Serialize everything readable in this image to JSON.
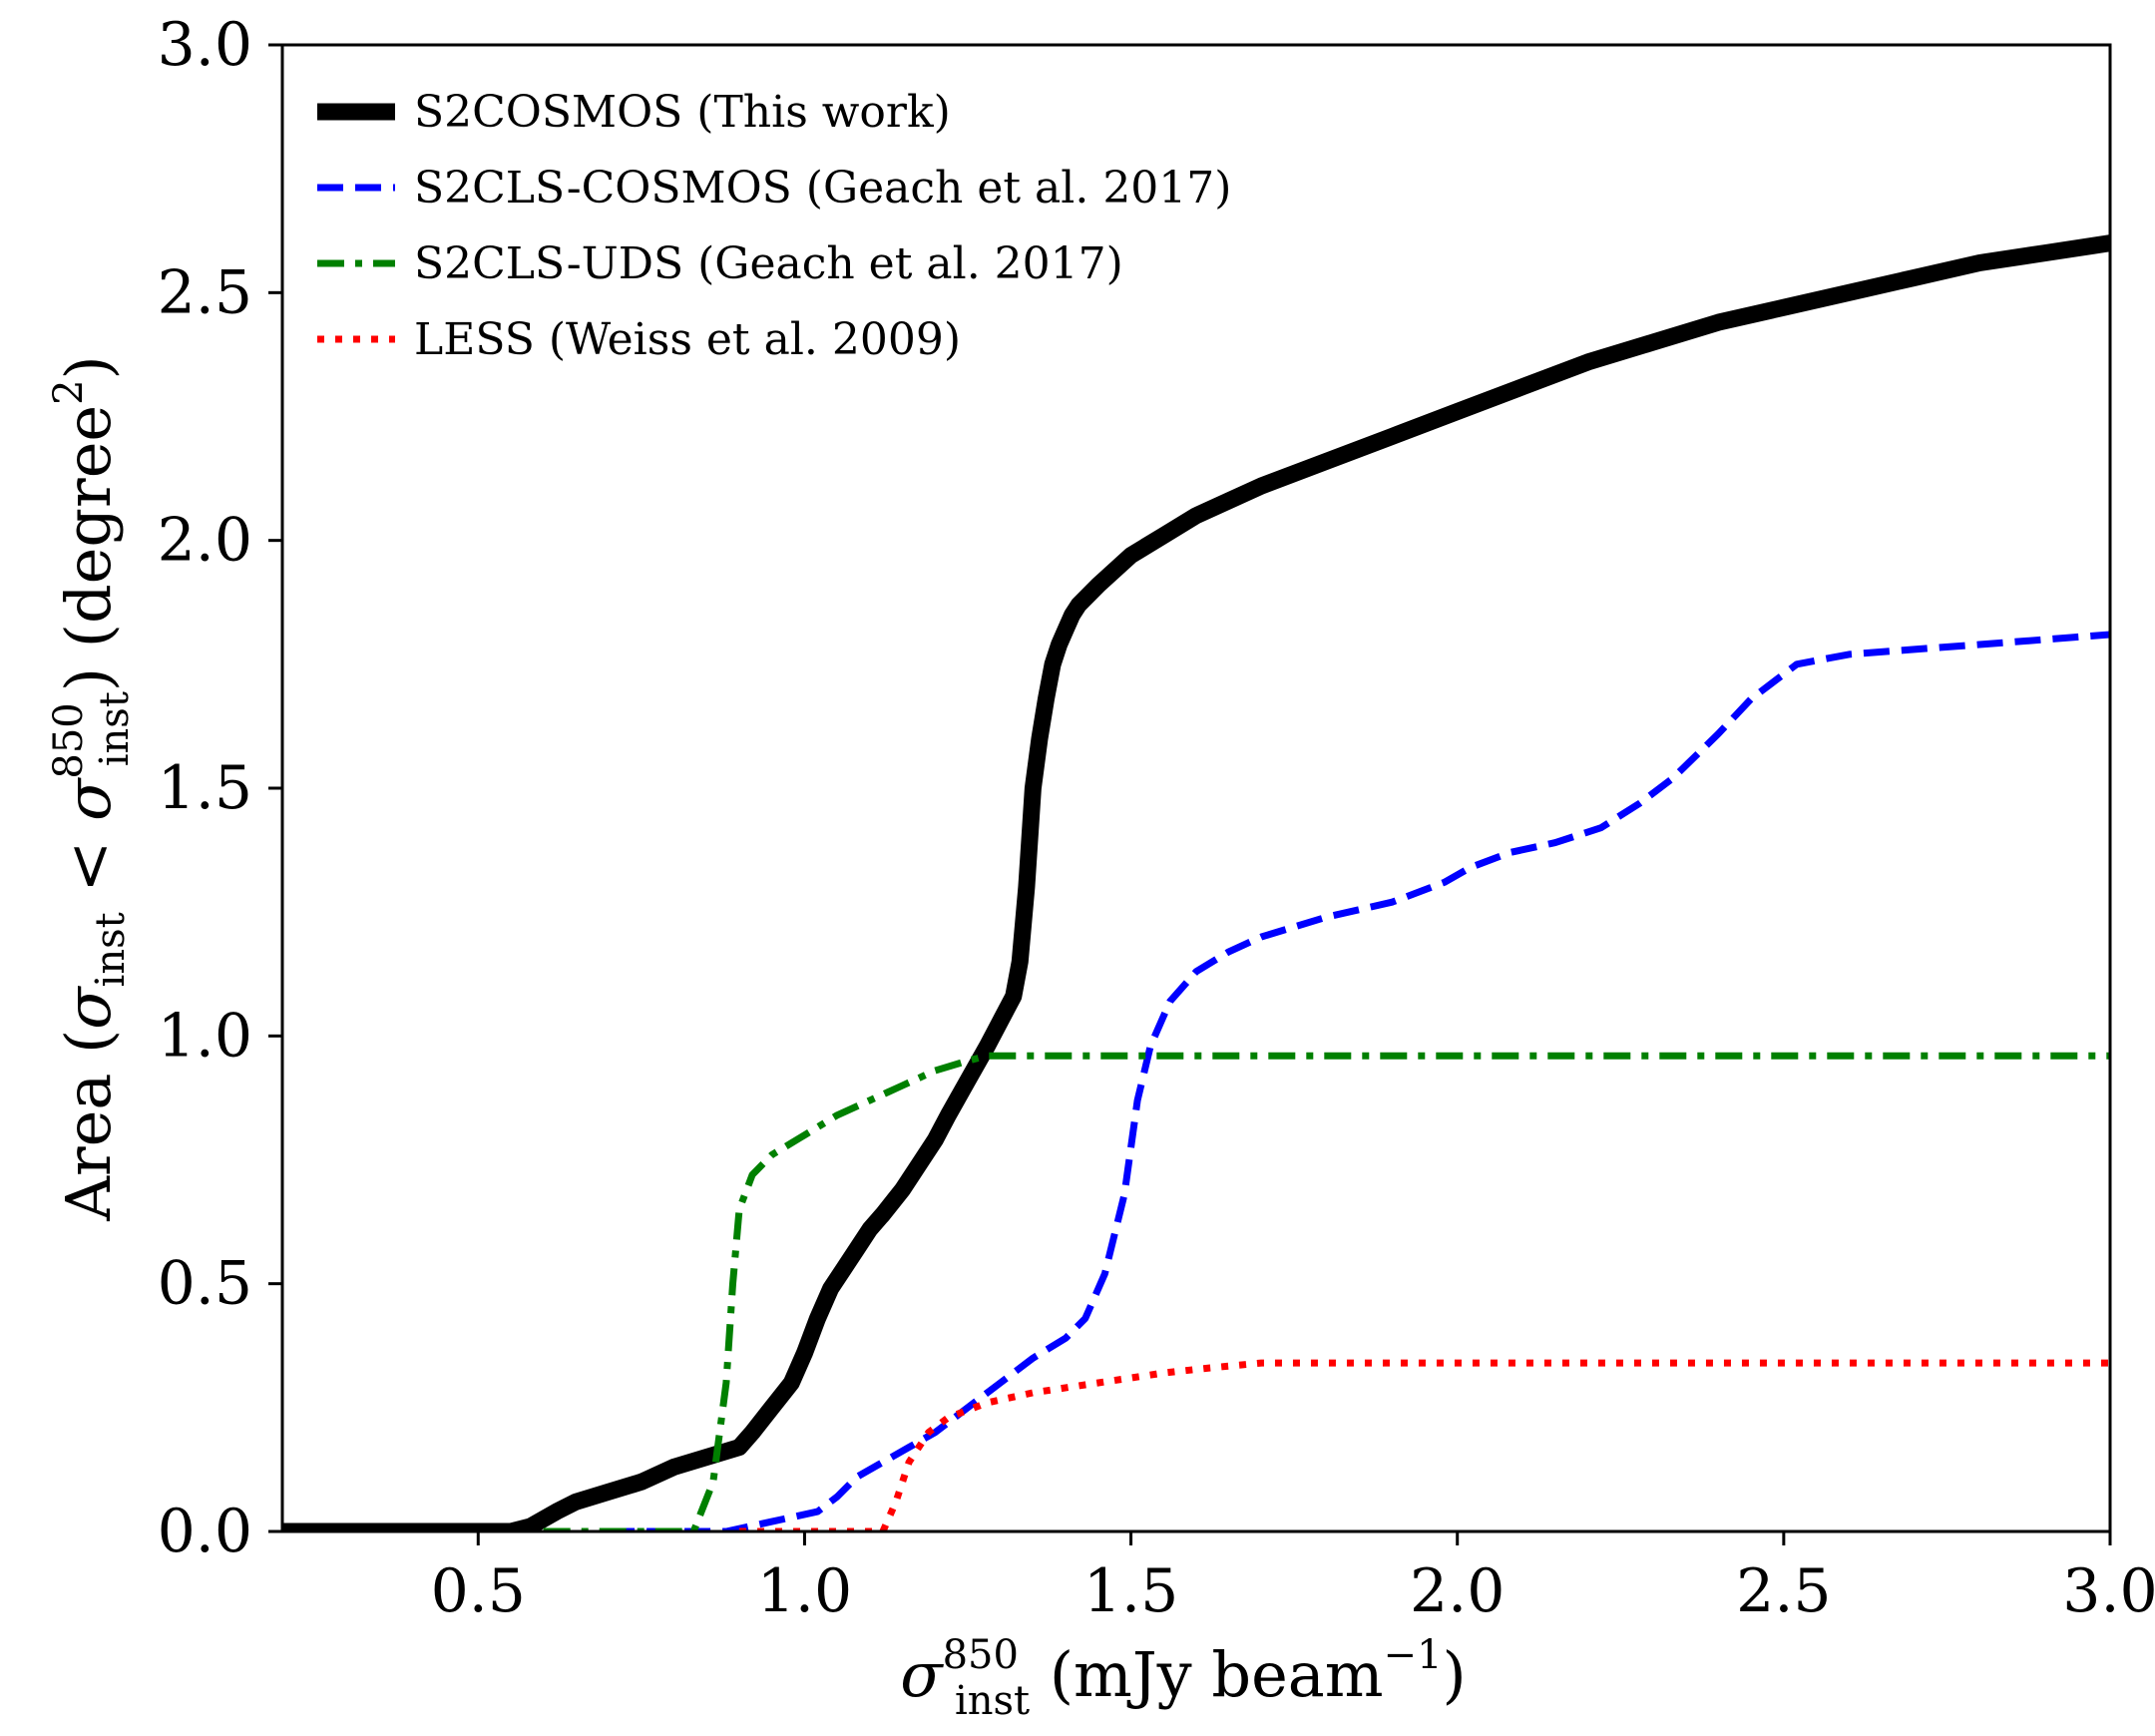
{
  "chart_data": {
    "type": "line",
    "title": "",
    "xlabel": {
      "main": "σ",
      "sup": "850",
      "sub": "inst",
      "rest": " (mJy beam",
      "unit_sup": "−1",
      "close": ")"
    },
    "ylabel": {
      "pre": "Area (",
      "sigma1": "σ",
      "sigma1_sub": "inst",
      "lt": " < ",
      "sigma2": "σ",
      "sigma2_sup": "850",
      "sigma2_sub": "inst",
      "mid": ") (degree",
      "deg_sup": "2",
      "close": ")"
    },
    "xlim": [
      0.2,
      3.0
    ],
    "ylim": [
      0.0,
      3.0
    ],
    "xticks": [
      0.5,
      1.0,
      1.5,
      2.0,
      2.5,
      3.0
    ],
    "xtick_labels": [
      "0.5",
      "1.0",
      "1.5",
      "2.0",
      "2.5",
      "3.0"
    ],
    "yticks": [
      0.0,
      0.5,
      1.0,
      1.5,
      2.0,
      2.5,
      3.0
    ],
    "ytick_labels": [
      "0.0",
      "0.5",
      "1.0",
      "1.5",
      "2.0",
      "2.5",
      "3.0"
    ],
    "grid": false,
    "legend_position": "top-left",
    "series": [
      {
        "name": "S2COSMOS (This work)",
        "color": "#000000",
        "style": "solid-thick",
        "x": [
          0.2,
          0.5,
          0.55,
          0.58,
          0.62,
          0.65,
          0.7,
          0.75,
          0.8,
          0.85,
          0.9,
          0.92,
          0.95,
          0.98,
          1.0,
          1.02,
          1.04,
          1.06,
          1.08,
          1.1,
          1.12,
          1.15,
          1.18,
          1.2,
          1.22,
          1.25,
          1.28,
          1.3,
          1.32,
          1.33,
          1.34,
          1.35,
          1.36,
          1.37,
          1.38,
          1.39,
          1.4,
          1.41,
          1.42,
          1.45,
          1.5,
          1.55,
          1.6,
          1.65,
          1.7,
          1.8,
          1.9,
          2.0,
          2.1,
          2.2,
          2.3,
          2.4,
          2.5,
          2.6,
          2.7,
          2.8,
          2.9,
          3.0
        ],
        "y": [
          0.0,
          0.0,
          0.0,
          0.01,
          0.04,
          0.06,
          0.08,
          0.1,
          0.13,
          0.15,
          0.17,
          0.2,
          0.25,
          0.3,
          0.36,
          0.43,
          0.49,
          0.53,
          0.57,
          0.61,
          0.64,
          0.69,
          0.75,
          0.79,
          0.84,
          0.91,
          0.98,
          1.03,
          1.08,
          1.15,
          1.3,
          1.5,
          1.6,
          1.68,
          1.75,
          1.79,
          1.82,
          1.85,
          1.87,
          1.91,
          1.97,
          2.01,
          2.05,
          2.08,
          2.11,
          2.16,
          2.21,
          2.26,
          2.31,
          2.36,
          2.4,
          2.44,
          2.47,
          2.5,
          2.53,
          2.56,
          2.58,
          2.6
        ]
      },
      {
        "name": "S2CLS-COSMOS (Geach et al. 2017)",
        "color": "#0000ff",
        "style": "dashed",
        "x": [
          0.7,
          0.88,
          0.95,
          1.02,
          1.05,
          1.08,
          1.12,
          1.16,
          1.2,
          1.25,
          1.3,
          1.35,
          1.4,
          1.43,
          1.46,
          1.49,
          1.51,
          1.53,
          1.56,
          1.6,
          1.65,
          1.7,
          1.8,
          1.9,
          1.98,
          2.02,
          2.08,
          2.15,
          2.22,
          2.28,
          2.33,
          2.4,
          2.45,
          2.49,
          2.52,
          2.6,
          2.7,
          2.8,
          2.9,
          3.0
        ],
        "y": [
          0.0,
          0.0,
          0.02,
          0.04,
          0.07,
          0.11,
          0.14,
          0.17,
          0.2,
          0.25,
          0.3,
          0.35,
          0.39,
          0.43,
          0.52,
          0.68,
          0.87,
          0.98,
          1.07,
          1.13,
          1.17,
          1.2,
          1.24,
          1.27,
          1.31,
          1.34,
          1.37,
          1.39,
          1.42,
          1.47,
          1.52,
          1.61,
          1.68,
          1.72,
          1.75,
          1.77,
          1.78,
          1.79,
          1.8,
          1.81
        ]
      },
      {
        "name": "S2CLS-UDS (Geach et al. 2017)",
        "color": "#008000",
        "style": "dashdot",
        "x": [
          0.6,
          0.83,
          0.86,
          0.88,
          0.89,
          0.9,
          0.92,
          0.95,
          1.0,
          1.05,
          1.1,
          1.15,
          1.2,
          1.25,
          1.28,
          1.3,
          1.5,
          2.0,
          2.5,
          3.0
        ],
        "y": [
          0.0,
          0.0,
          0.1,
          0.3,
          0.5,
          0.65,
          0.72,
          0.76,
          0.8,
          0.84,
          0.87,
          0.9,
          0.93,
          0.95,
          0.96,
          0.96,
          0.96,
          0.96,
          0.96,
          0.96
        ]
      },
      {
        "name": "LESS (Weiss et al. 2009)",
        "color": "#ff0000",
        "style": "dotted",
        "x": [
          0.9,
          1.12,
          1.14,
          1.16,
          1.19,
          1.22,
          1.28,
          1.35,
          1.45,
          1.55,
          1.62,
          1.7,
          2.0,
          2.5,
          3.0
        ],
        "y": [
          0.0,
          0.0,
          0.06,
          0.14,
          0.2,
          0.23,
          0.26,
          0.28,
          0.3,
          0.32,
          0.33,
          0.34,
          0.34,
          0.34,
          0.34
        ]
      }
    ]
  }
}
